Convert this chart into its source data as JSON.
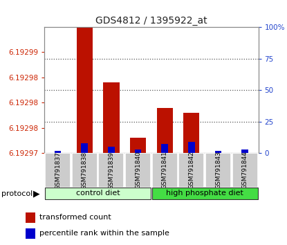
{
  "title": "GDS4812 / 1395922_at",
  "samples": [
    "GSM791837",
    "GSM791838",
    "GSM791839",
    "GSM791840",
    "GSM791841",
    "GSM791842",
    "GSM791843",
    "GSM791844"
  ],
  "red_values": [
    6.19297,
    6.192999,
    6.192984,
    6.192973,
    6.192979,
    6.192978,
    6.19297,
    6.19297
  ],
  "blue_pct": [
    2,
    8,
    5,
    3,
    7,
    9,
    2,
    3
  ],
  "ylim_left": [
    6.19297,
    6.192995
  ],
  "ylim_right": [
    0,
    100
  ],
  "yticks_left_vals": [
    6.19297,
    6.192975,
    6.19298,
    6.192985,
    6.19299
  ],
  "ytick_labels_left": [
    "6.19297",
    "6.19298",
    "6.19298",
    "6.19298",
    "6.19299"
  ],
  "yticks_right": [
    0,
    25,
    50,
    75,
    100
  ],
  "bar_color_red": "#bb1100",
  "bar_color_blue": "#0000cc",
  "bar_width": 0.6,
  "blue_bar_width": 0.25,
  "legend_red": "transformed count",
  "legend_blue": "percentile rank within the sample",
  "title_color": "#222222",
  "left_axis_color": "#cc2200",
  "right_axis_color": "#2244cc",
  "bar_bottom": 6.19297,
  "group1_color": "#ccffcc",
  "group2_color": "#44dd44",
  "sample_box_color": "#cccccc"
}
